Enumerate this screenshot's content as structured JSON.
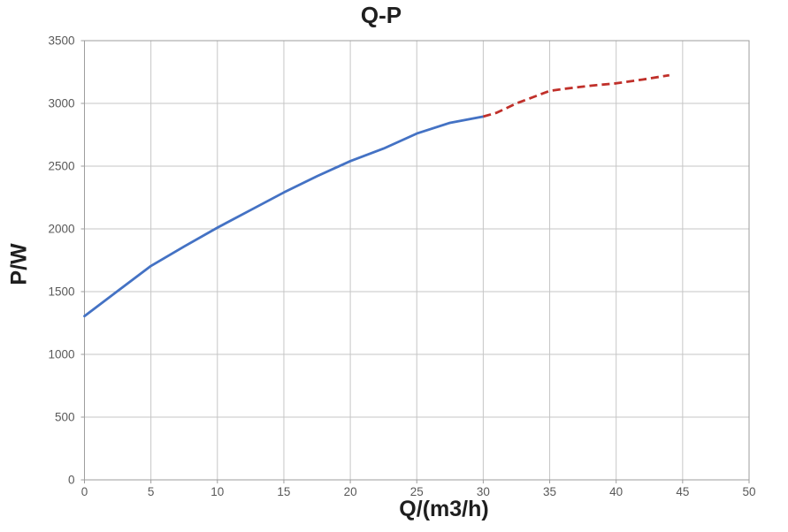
{
  "chart_data": {
    "type": "line",
    "title": "Q-P",
    "xlabel": "Q/(m3/h)",
    "ylabel": "P/W",
    "xlim": [
      0,
      50
    ],
    "ylim": [
      0,
      3500
    ],
    "x_ticks": [
      0,
      5,
      10,
      15,
      20,
      25,
      30,
      35,
      40,
      45,
      50
    ],
    "y_ticks": [
      0,
      500,
      1000,
      1500,
      2000,
      2500,
      3000,
      3500
    ],
    "grid": true,
    "legend": false,
    "series": [
      {
        "name": "blue-solid",
        "style": "solid",
        "color": "#4472C4",
        "x": [
          0,
          2.5,
          5,
          7.5,
          10,
          12.5,
          15,
          17.5,
          20,
          22.5,
          25,
          27.5,
          30
        ],
        "y": [
          1305,
          1505,
          1705,
          1860,
          2010,
          2150,
          2290,
          2420,
          2540,
          2640,
          2760,
          2845,
          2895
        ]
      },
      {
        "name": "red-dashed",
        "style": "dashed",
        "color": "#C0302A",
        "x": [
          30,
          31,
          32.5,
          34,
          35,
          36,
          38,
          40,
          42,
          44
        ],
        "y": [
          2895,
          2925,
          3000,
          3060,
          3100,
          3115,
          3140,
          3160,
          3190,
          3225
        ]
      }
    ]
  },
  "colors": {
    "grid": "#C6C6C6",
    "axis": "#9E9E9E",
    "tick_text": "#595959",
    "title_text": "#1F1F1F"
  }
}
